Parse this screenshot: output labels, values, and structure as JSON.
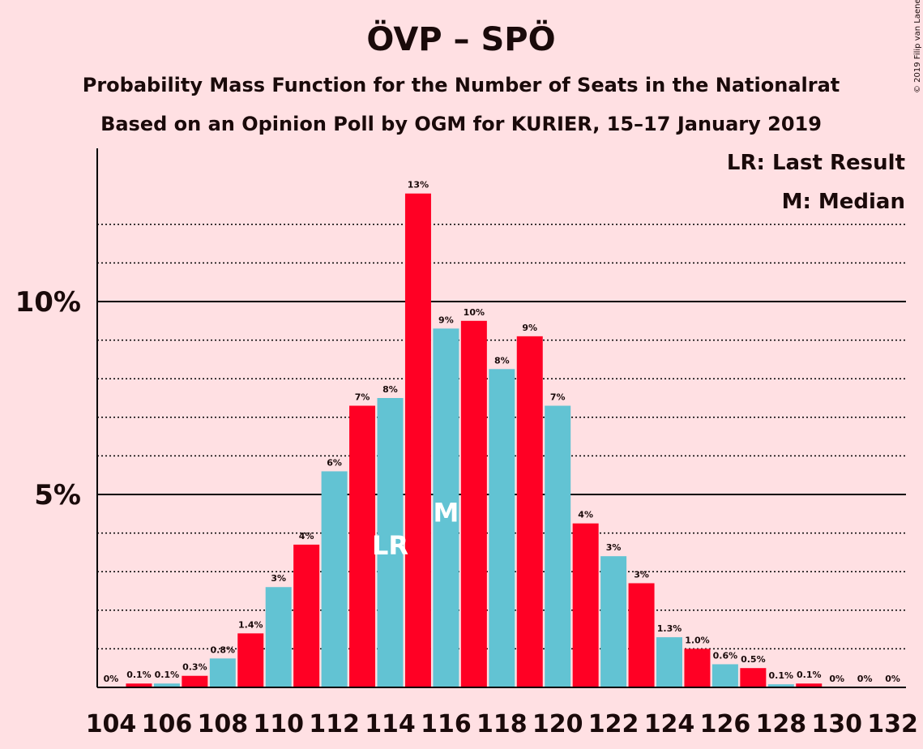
{
  "title": "ÖVP – SPÖ",
  "subtitle1": "Probability Mass Function for the Number of Seats in the Nationalrat",
  "subtitle2": "Based on an Opinion Poll by OGM for KURIER, 15–17 January 2019",
  "legend_lr": "LR: Last Result",
  "legend_m": "M: Median",
  "copyright": "© 2019 Filip van Laenen",
  "colors": {
    "background": "#ffe0e3",
    "red": "#ff0024",
    "teal": "#62c3d3",
    "text": "#1a0a0a"
  },
  "chart_data": {
    "type": "bar",
    "x": [
      104,
      105,
      106,
      107,
      108,
      109,
      110,
      111,
      112,
      113,
      114,
      115,
      116,
      117,
      118,
      119,
      120,
      121,
      122,
      123,
      124,
      125,
      126,
      127,
      128,
      129,
      130,
      131,
      132
    ],
    "values": [
      0,
      0.1,
      0.1,
      0.3,
      0.75,
      1.4,
      2.6,
      3.7,
      5.6,
      7.3,
      7.5,
      12.8,
      9.3,
      9.5,
      8.25,
      9.1,
      7.3,
      4.25,
      3.4,
      2.7,
      1.3,
      1.0,
      0.6,
      0.5,
      0.08,
      0.1,
      0,
      0,
      0
    ],
    "labels": [
      "0%",
      "0.1%",
      "0.1%",
      "0.3%",
      "0.8%",
      "1.4%",
      "3%",
      "4%",
      "6%",
      "7%",
      "8%",
      "13%",
      "9%",
      "10%",
      "8%",
      "9%",
      "7%",
      "4%",
      "3%",
      "3%",
      "1.3%",
      "1.0%",
      "0.6%",
      "0.5%",
      "0.1%",
      "0.1%",
      "0%",
      "0%",
      "0%"
    ],
    "x_tick_labels": [
      "104",
      "106",
      "108",
      "110",
      "112",
      "114",
      "116",
      "118",
      "120",
      "122",
      "124",
      "126",
      "128",
      "130",
      "132"
    ],
    "y_tick_labels": [
      "5%",
      "10%"
    ],
    "y_ticks": [
      5,
      10
    ],
    "ylim": [
      0,
      14
    ],
    "last_result": 114,
    "last_result_marker": "LR",
    "median": 116,
    "median_marker": "M",
    "color_pattern": "alternating red (odd) / teal (even)"
  }
}
